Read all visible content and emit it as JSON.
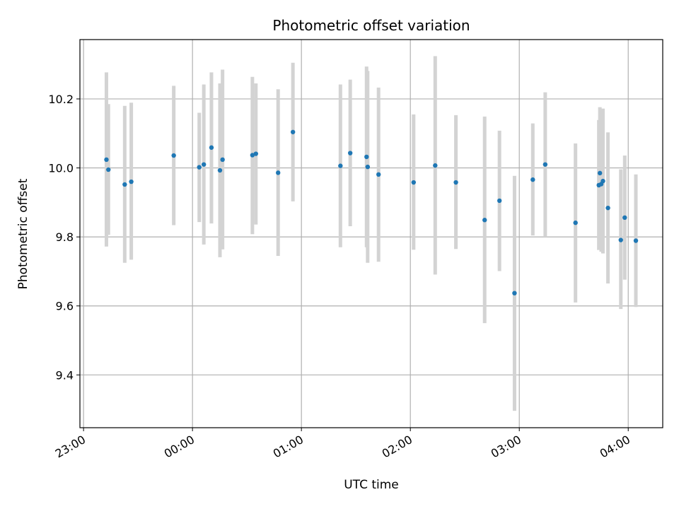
{
  "chart_data": {
    "type": "scatter",
    "title": "Photometric offset variation",
    "xlabel": "UTC time",
    "ylabel": "Photometric offset",
    "x_unit": "hours since 23:00 UTC",
    "xlim": [
      -0.0333,
      5.3167
    ],
    "ylim": [
      9.247,
      10.372
    ],
    "x_ticks": [
      {
        "value": 0,
        "label": "23:00"
      },
      {
        "value": 1,
        "label": "00:00"
      },
      {
        "value": 2,
        "label": "01:00"
      },
      {
        "value": 3,
        "label": "02:00"
      },
      {
        "value": 4,
        "label": "03:00"
      },
      {
        "value": 5,
        "label": "04:00"
      }
    ],
    "y_ticks": [
      {
        "value": 9.4,
        "label": "9.4"
      },
      {
        "value": 9.6,
        "label": "9.6"
      },
      {
        "value": 9.8,
        "label": "9.8"
      },
      {
        "value": 10.0,
        "label": "10.0"
      },
      {
        "value": 10.2,
        "label": "10.2"
      }
    ],
    "grid": true,
    "marker_color": "#1f77b4",
    "errorbar_color": "#d3d3d3",
    "points": [
      {
        "time": "23:13",
        "x": 0.21,
        "y": 10.024,
        "lo": 9.772,
        "hi": 10.277
      },
      {
        "time": "23:13",
        "x": 0.228,
        "y": 9.995,
        "lo": 9.806,
        "hi": 10.185
      },
      {
        "time": "23:23",
        "x": 0.378,
        "y": 9.952,
        "lo": 9.725,
        "hi": 10.18
      },
      {
        "time": "23:26",
        "x": 0.438,
        "y": 9.96,
        "lo": 9.734,
        "hi": 10.189
      },
      {
        "time": "23:50",
        "x": 0.828,
        "y": 10.036,
        "lo": 9.834,
        "hi": 10.238
      },
      {
        "time": "00:03",
        "x": 1.062,
        "y": 10.002,
        "lo": 9.843,
        "hi": 10.16
      },
      {
        "time": "00:06",
        "x": 1.104,
        "y": 10.01,
        "lo": 9.778,
        "hi": 10.242
      },
      {
        "time": "00:10",
        "x": 1.174,
        "y": 10.059,
        "lo": 9.839,
        "hi": 10.277
      },
      {
        "time": "00:15",
        "x": 1.252,
        "y": 9.993,
        "lo": 9.741,
        "hi": 10.245
      },
      {
        "time": "00:16",
        "x": 1.276,
        "y": 10.024,
        "lo": 9.764,
        "hi": 10.285
      },
      {
        "time": "00:33",
        "x": 1.55,
        "y": 10.037,
        "lo": 9.808,
        "hi": 10.264
      },
      {
        "time": "00:35",
        "x": 1.582,
        "y": 10.041,
        "lo": 9.836,
        "hi": 10.245
      },
      {
        "time": "00:47",
        "x": 1.786,
        "y": 9.986,
        "lo": 9.745,
        "hi": 10.228
      },
      {
        "time": "00:55",
        "x": 1.922,
        "y": 10.104,
        "lo": 9.903,
        "hi": 10.305
      },
      {
        "time": "01:21",
        "x": 2.358,
        "y": 10.006,
        "lo": 9.77,
        "hi": 10.242
      },
      {
        "time": "01:27",
        "x": 2.448,
        "y": 10.043,
        "lo": 9.831,
        "hi": 10.256
      },
      {
        "time": "01:36",
        "x": 2.598,
        "y": 10.032,
        "lo": 9.77,
        "hi": 10.294
      },
      {
        "time": "01:36",
        "x": 2.608,
        "y": 10.003,
        "lo": 9.725,
        "hi": 10.281
      },
      {
        "time": "01:42",
        "x": 2.708,
        "y": 9.981,
        "lo": 9.728,
        "hi": 10.233
      },
      {
        "time": "02:02",
        "x": 3.03,
        "y": 9.958,
        "lo": 9.763,
        "hi": 10.155
      },
      {
        "time": "02:13",
        "x": 3.228,
        "y": 10.007,
        "lo": 9.691,
        "hi": 10.324
      },
      {
        "time": "02:25",
        "x": 3.418,
        "y": 9.958,
        "lo": 9.765,
        "hi": 10.153
      },
      {
        "time": "02:41",
        "x": 3.682,
        "y": 9.849,
        "lo": 9.55,
        "hi": 10.149
      },
      {
        "time": "02:49",
        "x": 3.818,
        "y": 9.905,
        "lo": 9.701,
        "hi": 10.108
      },
      {
        "time": "02:57",
        "x": 3.956,
        "y": 9.637,
        "lo": 9.296,
        "hi": 9.977
      },
      {
        "time": "03:07",
        "x": 4.124,
        "y": 9.966,
        "lo": 9.804,
        "hi": 10.129
      },
      {
        "time": "03:14",
        "x": 4.238,
        "y": 10.01,
        "lo": 9.8,
        "hi": 10.219
      },
      {
        "time": "03:31",
        "x": 4.516,
        "y": 9.841,
        "lo": 9.61,
        "hi": 10.071
      },
      {
        "time": "03:44",
        "x": 4.73,
        "y": 9.95,
        "lo": 9.762,
        "hi": 10.139
      },
      {
        "time": "03:44",
        "x": 4.74,
        "y": 9.985,
        "lo": 9.793,
        "hi": 10.176
      },
      {
        "time": "03:45",
        "x": 4.752,
        "y": 9.953,
        "lo": 9.757,
        "hi": 10.149
      },
      {
        "time": "03:46",
        "x": 4.768,
        "y": 9.962,
        "lo": 9.752,
        "hi": 10.172
      },
      {
        "time": "03:49",
        "x": 4.814,
        "y": 9.884,
        "lo": 9.665,
        "hi": 10.103
      },
      {
        "time": "03:56",
        "x": 4.932,
        "y": 9.791,
        "lo": 9.591,
        "hi": 9.996
      },
      {
        "time": "03:58",
        "x": 4.968,
        "y": 9.856,
        "lo": 9.676,
        "hi": 10.036
      },
      {
        "time": "04:04",
        "x": 5.07,
        "y": 9.789,
        "lo": 9.597,
        "hi": 9.981
      }
    ]
  }
}
